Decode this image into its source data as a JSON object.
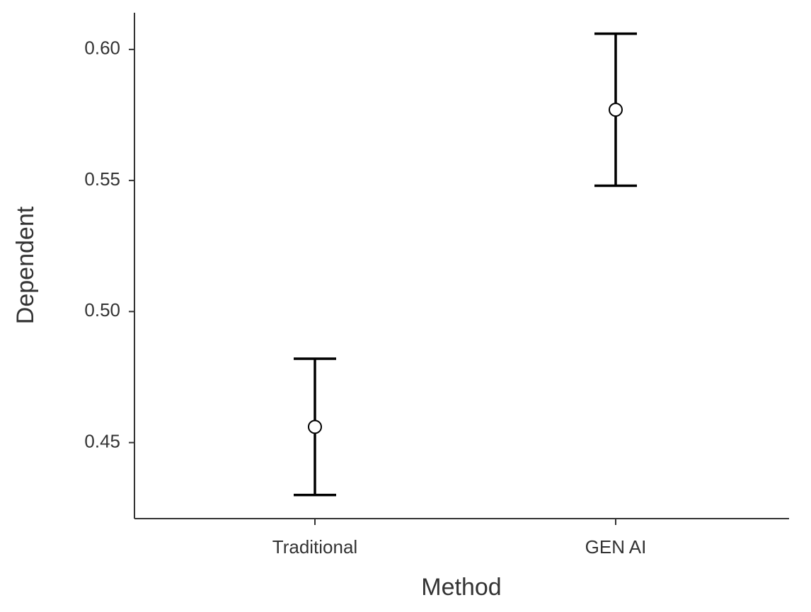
{
  "chart_data": {
    "type": "errorbar",
    "x_label": "Method",
    "y_label": "Dependent",
    "categories": [
      "Traditional",
      "GEN AI"
    ],
    "values": [
      0.456,
      0.577
    ],
    "lower": [
      0.43,
      0.548
    ],
    "upper": [
      0.482,
      0.606
    ],
    "color": "#000000",
    "ylim": [
      0.421,
      0.614
    ],
    "yticks": [
      {
        "value": 0.45,
        "label": "0.45"
      },
      {
        "value": 0.5,
        "label": "0.50"
      },
      0.55,
      {
        "value": 0.6,
        "label": "0.60"
      }
    ],
    "grid": false
  }
}
